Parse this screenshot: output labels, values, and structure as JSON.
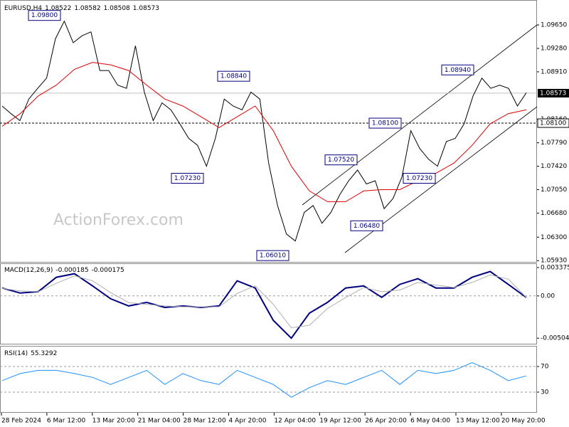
{
  "chart_data": [
    {
      "type": "line",
      "title": "EURUSD,H4",
      "header_values": [
        1.08522,
        1.08582,
        1.08508,
        1.08573
      ],
      "watermark": "ActionForex.com",
      "ylim": [
        1.0591,
        1.1001
      ],
      "yticks": [
        {
          "value": 1.0965,
          "label": "1.09650"
        },
        {
          "value": 1.0928,
          "label": "1.09280"
        },
        {
          "value": 1.0891,
          "label": "1.08910"
        },
        {
          "value": 1.0816,
          "label": "1.08160"
        },
        {
          "value": 1.0779,
          "label": "1.07790"
        },
        {
          "value": 1.0742,
          "label": "1.07420"
        },
        {
          "value": 1.0705,
          "label": "1.07050"
        },
        {
          "value": 1.0668,
          "label": "1.06680"
        },
        {
          "value": 1.063,
          "label": "1.06300"
        },
        {
          "value": 1.0593,
          "label": "1.05930"
        }
      ],
      "grid": false,
      "last_price": 1.08573,
      "level": {
        "value": 1.081,
        "label": "1.08100"
      },
      "annotations": [
        {
          "value": 1.098,
          "label": "1.09800"
        },
        {
          "value": 1.0884,
          "label": "1.08840"
        },
        {
          "value": 1.0723,
          "label": "1.07230"
        },
        {
          "value": 1.0601,
          "label": "1.06010"
        },
        {
          "value": 1.0752,
          "label": "1.07520"
        },
        {
          "value": 1.0648,
          "label": "1.06480"
        },
        {
          "value": 1.081,
          "label": "1.08100"
        },
        {
          "value": 1.0723,
          "label": "1.07230"
        },
        {
          "value": 1.0894,
          "label": "1.08940"
        }
      ],
      "series": [
        {
          "color": "#000000",
          "width": 1,
          "values": [
            1.0837,
            1.0825,
            1.0814,
            1.0848,
            1.0865,
            1.0881,
            1.0943,
            1.0971,
            1.0937,
            1.0948,
            1.0954,
            1.0893,
            1.0893,
            1.087,
            1.0865,
            1.0932,
            1.0859,
            1.0814,
            1.0842,
            1.0831,
            1.0809,
            1.0786,
            1.0775,
            1.0742,
            1.0786,
            1.0848,
            1.0837,
            1.0831,
            1.0859,
            1.0848,
            1.0747,
            1.068,
            1.0635,
            1.0624,
            1.0669,
            1.068,
            1.0652,
            1.0669,
            1.0697,
            1.0719,
            1.0736,
            1.0714,
            1.0719,
            1.0675,
            1.0691,
            1.0725,
            1.0798,
            1.077,
            1.0753,
            1.0742,
            1.0781,
            1.0786,
            1.0809,
            1.0853,
            1.0881,
            1.0865,
            1.087,
            1.0865,
            1.0837,
            1.0858
          ]
        },
        {
          "color": "#e00000",
          "width": 1,
          "values": [
            1.0805,
            1.0825,
            1.0853,
            1.087,
            1.0895,
            1.0906,
            1.0902,
            1.0893,
            1.087,
            1.0848,
            1.0837,
            1.082,
            1.0803,
            1.082,
            1.0837,
            1.0798,
            1.0742,
            1.0703,
            1.0686,
            1.0686,
            1.0703,
            1.0705,
            1.0705,
            1.0719,
            1.0731,
            1.0747,
            1.0775,
            1.0809,
            1.0825,
            1.0831
          ]
        }
      ]
    },
    {
      "type": "line",
      "title": "MACD(12,26,9)",
      "header_values": [
        -0.000185,
        -0.000175
      ],
      "ylim": [
        -0.0057,
        0.0038
      ],
      "yticks": [
        0.003375,
        {
          "value": 0,
          "label": "0.00"
        },
        -0.00504
      ],
      "zero_line": true,
      "grid": false,
      "series": [
        {
          "color": "#000080",
          "width": 2,
          "values": [
            0.00094,
            0.00034,
            0.00051,
            0.00222,
            0.00265,
            0.0012,
            -0.00034,
            -0.0012,
            -0.00077,
            -0.00137,
            -0.0012,
            -0.00137,
            -0.0012,
            0.0018,
            0.00094,
            -0.00291,
            -0.00504,
            -0.00205,
            -0.00077,
            0.00094,
            0.0012,
            -0.00017,
            0.00137,
            0.00205,
            0.00094,
            0.00094,
            0.00222,
            0.00291,
            0.00137,
            -0.000185
          ]
        },
        {
          "color": "#b0b0b0",
          "width": 1,
          "values": [
            0.0009,
            0.0006,
            0.0005,
            0.0015,
            0.0024,
            0.0018,
            0.0004,
            -0.0008,
            -0.001,
            -0.0012,
            -0.0013,
            -0.0013,
            -0.0013,
            0.0003,
            0.0012,
            -0.001,
            -0.0038,
            -0.0035,
            -0.0015,
            -0.0002,
            0.001,
            0.0005,
            0.0007,
            0.0016,
            0.0013,
            0.001,
            0.0016,
            0.0025,
            0.002,
            -0.000175
          ]
        }
      ]
    },
    {
      "type": "line",
      "title": "RSI(14)",
      "header_values": [
        55.3292
      ],
      "ylim": [
        0,
        100
      ],
      "yticks": [
        70,
        30
      ],
      "grid": true,
      "xticks": [
        "28 Feb 2024",
        "6 Mar 12:00",
        "13 Mar 20:00",
        "21 Mar 04:00",
        "28 Mar 12:00",
        "4 Apr 20:00",
        "12 Apr 04:00",
        "19 Apr 12:00",
        "26 Apr 20:00",
        "6 May 04:00",
        "13 May 12:00",
        "20 May 20:00"
      ],
      "series": [
        {
          "color": "#1e90ff",
          "width": 1,
          "values": [
            48,
            59,
            64,
            64,
            59,
            53,
            42,
            53,
            64,
            42,
            59,
            48,
            42,
            64,
            53,
            42,
            22,
            37,
            48,
            42,
            53,
            64,
            42,
            64,
            59,
            64,
            76,
            64,
            48,
            55.3292
          ]
        }
      ]
    }
  ]
}
